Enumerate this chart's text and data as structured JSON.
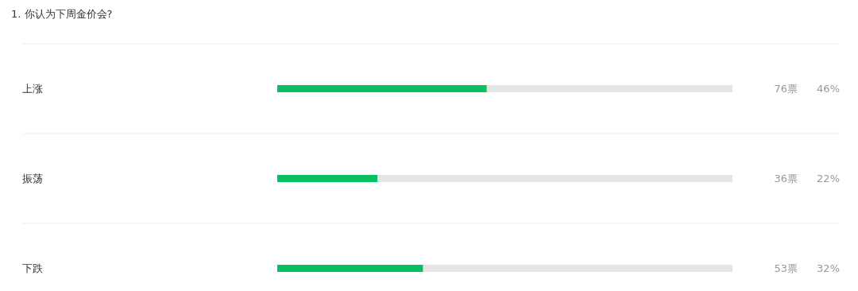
{
  "chart_data": {
    "type": "bar",
    "orientation": "horizontal",
    "title": "1. 你认为下周金价会?",
    "categories": [
      "上涨",
      "振荡",
      "下跌"
    ],
    "values": [
      46,
      22,
      32
    ],
    "value_labels": [
      "46%",
      "22%",
      "32%"
    ],
    "color": "#07c160",
    "xlim": [
      0,
      100
    ],
    "tick_labels": "y",
    "grid": true,
    "annotations": [
      "76票",
      "36票",
      "53票"
    ]
  }
}
